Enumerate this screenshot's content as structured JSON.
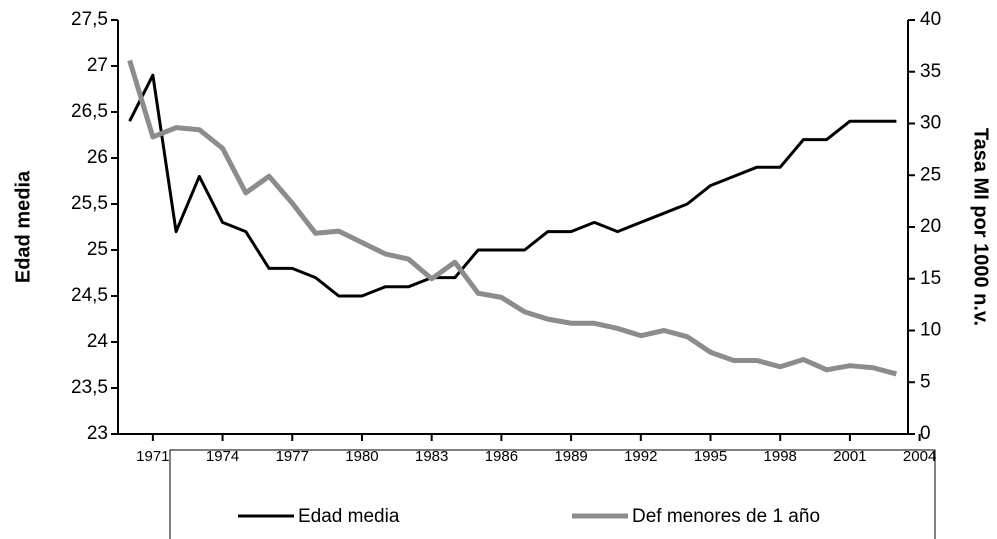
{
  "chart_data": {
    "type": "line",
    "x": [
      1970,
      1971,
      1972,
      1973,
      1974,
      1975,
      1976,
      1977,
      1978,
      1979,
      1980,
      1981,
      1982,
      1983,
      1984,
      1985,
      1986,
      1987,
      1988,
      1989,
      1990,
      1991,
      1992,
      1993,
      1994,
      1995,
      1996,
      1997,
      1998,
      1999,
      2000,
      2001,
      2002,
      2003
    ],
    "xlim": [
      1969.5,
      2003.5
    ],
    "xticks": [
      1971,
      1974,
      1977,
      1980,
      1983,
      1986,
      1989,
      1992,
      1995,
      1998,
      2001,
      2004
    ],
    "ylabel": "Edad media",
    "y2label": "Tasa MI por 1000 n.v.",
    "ylim": [
      23,
      27.5
    ],
    "yticks": [
      23,
      {
        "value": 23.5,
        "label": "23,5"
      },
      24,
      {
        "value": 24.5,
        "label": "24,5"
      },
      25,
      {
        "value": 25.5,
        "label": "25,5"
      },
      26,
      {
        "value": 26.5,
        "label": "26,5"
      },
      27,
      {
        "value": 27.5,
        "label": "27,5"
      }
    ],
    "y2lim": [
      0,
      40
    ],
    "y2ticks": [
      0,
      5,
      10,
      15,
      20,
      25,
      30,
      35,
      40
    ],
    "legend": "bottom",
    "series": [
      {
        "name": "Edad media",
        "color": "#000000",
        "values": [
          26.4,
          26.9,
          25.2,
          25.8,
          25.3,
          25.2,
          24.8,
          24.8,
          24.7,
          24.5,
          24.5,
          24.6,
          24.6,
          24.7,
          24.7,
          25.0,
          25.0,
          25.0,
          25.2,
          25.2,
          25.3,
          25.2,
          25.3,
          25.4,
          25.5,
          25.7,
          25.8,
          25.9,
          25.9,
          26.2,
          26.2,
          26.4,
          26.4,
          26.4
        ]
      },
      {
        "name": "Def menores de 1 año",
        "color": "#8c8c8c",
        "axis": "y2",
        "values": [
          36.1,
          28.7,
          29.6,
          29.4,
          27.6,
          23.3,
          24.9,
          22.3,
          19.4,
          19.6,
          18.5,
          17.4,
          16.9,
          15.0,
          16.6,
          13.6,
          13.2,
          11.8,
          11.1,
          10.7,
          10.7,
          10.2,
          9.5,
          10.0,
          9.4,
          7.9,
          7.1,
          7.1,
          6.5,
          7.2,
          6.2,
          6.6,
          6.4,
          5.8
        ]
      }
    ]
  }
}
